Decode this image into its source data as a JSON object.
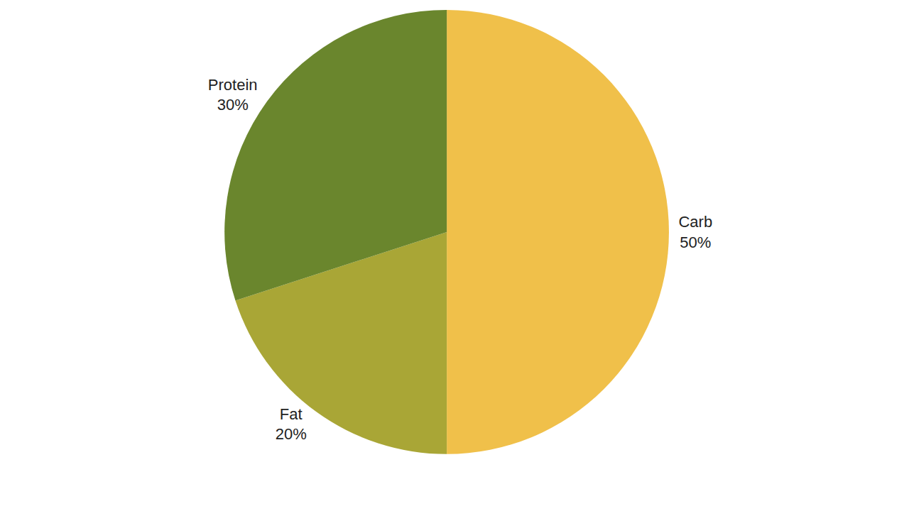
{
  "chart_data": {
    "type": "pie",
    "categories": [
      "Carb",
      "Fat",
      "Protein"
    ],
    "values": [
      50,
      20,
      30
    ],
    "value_labels": [
      "50%",
      "20%",
      "30%"
    ],
    "colors": [
      "#f0c04a",
      "#a9a636",
      "#6a862d"
    ],
    "data_labels": true
  }
}
